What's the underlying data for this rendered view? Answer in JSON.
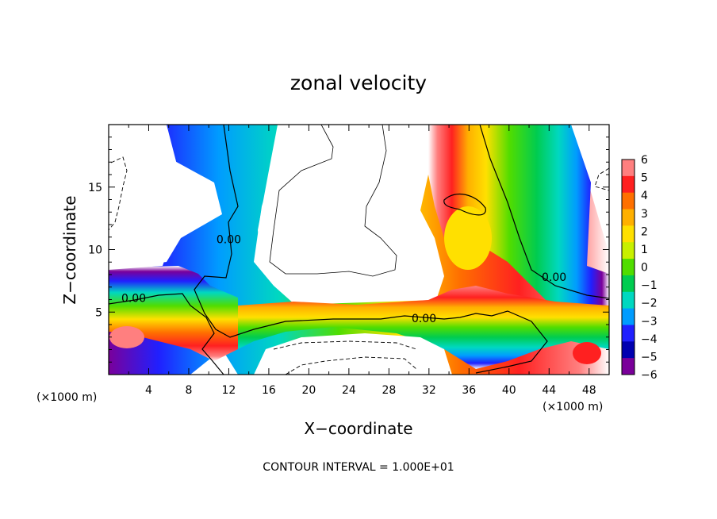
{
  "chart_data": {
    "type": "heatmap",
    "title": "zonal velocity",
    "xlabel": "X−coordinate",
    "ylabel": "Z−coordinate",
    "x_unit_note": "(×1000 m)",
    "y_unit_note": "(×1000 m)",
    "xlim": [
      0,
      50
    ],
    "ylim": [
      0,
      20
    ],
    "x_ticks": [
      4,
      8,
      12,
      16,
      20,
      24,
      28,
      32,
      36,
      40,
      44,
      48
    ],
    "y_ticks": [
      5,
      10,
      15
    ],
    "colorbar": {
      "levels": [
        6,
        5,
        4,
        3,
        2,
        1,
        0,
        -1,
        -2,
        -3,
        -4,
        -5,
        -6
      ],
      "labels": [
        "6",
        "5",
        "4",
        "3",
        "2",
        "1",
        "0",
        "−1",
        "−2",
        "−3",
        "−4",
        "−5",
        "−6"
      ],
      "colors": [
        "#ff7f7f",
        "#ff2020",
        "#ff7000",
        "#ffb000",
        "#ffe000",
        "#c8f000",
        "#50dd00",
        "#00cc50",
        "#00d8c0",
        "#009cff",
        "#2020ff",
        "#0000b0",
        "#7a009a"
      ]
    },
    "contour_labels": [
      {
        "text": "0.00",
        "x": 2.5,
        "z": 5.8
      },
      {
        "text": "0.00",
        "x": 12.0,
        "z": 10.5
      },
      {
        "text": "0.00",
        "x": 31.5,
        "z": 4.2
      },
      {
        "text": "0.00",
        "x": 44.5,
        "z": 7.5
      }
    ],
    "footnote": "CONTOUR INTERVAL = 1.000E+01"
  }
}
